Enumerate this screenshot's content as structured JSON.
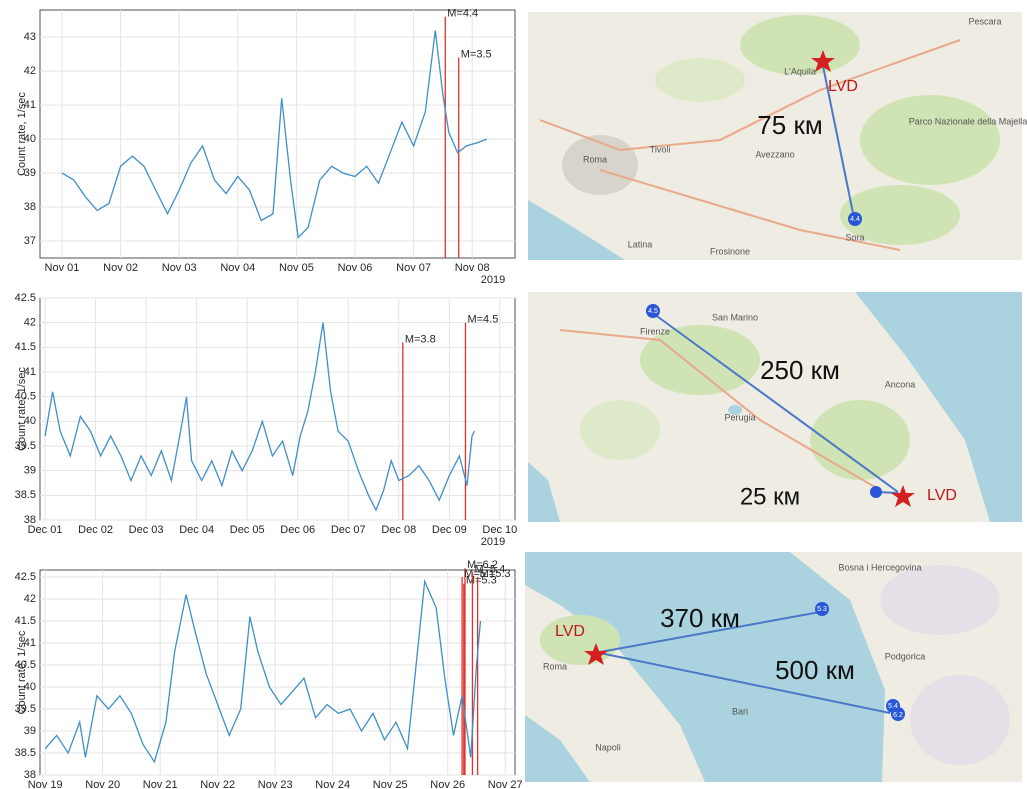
{
  "chart_data": [
    {
      "type": "line",
      "ylabel": "Count rate, 1/sec",
      "year": "2019",
      "color": "#3f8fc8",
      "grid": true,
      "xlim": [
        -0.375,
        7.73
      ],
      "ylim": [
        36.5,
        43.8
      ],
      "xticks": [
        {
          "value": 0,
          "label": "Nov 01"
        },
        {
          "value": 1,
          "label": "Nov 02"
        },
        {
          "value": 2,
          "label": "Nov 03"
        },
        {
          "value": 3,
          "label": "Nov 04"
        },
        {
          "value": 4,
          "label": "Nov 05"
        },
        {
          "value": 5,
          "label": "Nov 06"
        },
        {
          "value": 6,
          "label": "Nov 07"
        },
        {
          "value": 7,
          "label": "Nov 08"
        }
      ],
      "yticks": [
        37,
        38,
        39,
        40,
        41,
        42,
        43
      ],
      "x": [
        0,
        0.2,
        0.4,
        0.6,
        0.8,
        1.0,
        1.2,
        1.4,
        1.6,
        1.8,
        2.0,
        2.2,
        2.4,
        2.6,
        2.8,
        3.0,
        3.2,
        3.4,
        3.6,
        3.75,
        3.9,
        4.03,
        4.2,
        4.4,
        4.6,
        4.8,
        5.0,
        5.2,
        5.4,
        5.6,
        5.8,
        6.0,
        6.2,
        6.37,
        6.5,
        6.6,
        6.75,
        6.9,
        7.1,
        7.25
      ],
      "values": [
        39,
        38.8,
        38.3,
        37.9,
        38.1,
        39.2,
        39.5,
        39.2,
        38.5,
        37.8,
        38.5,
        39.3,
        39.8,
        38.8,
        38.4,
        38.9,
        38.5,
        37.6,
        37.8,
        41.2,
        38.8,
        37.1,
        37.4,
        38.8,
        39.2,
        39,
        38.9,
        39.2,
        38.7,
        39.6,
        40.5,
        39.8,
        40.8,
        43.2,
        41.3,
        40.2,
        39.6,
        39.8,
        39.9,
        40.0
      ],
      "annotations": [
        {
          "label": "M=4.4",
          "x": 6.54,
          "top": 43.6
        },
        {
          "label": "M=3.5",
          "x": 6.77,
          "top": 42.4
        }
      ]
    },
    {
      "type": "line",
      "ylabel": "Count rate, 1/sec",
      "year": "2019",
      "color": "#3f8fc8",
      "grid": true,
      "xlim": [
        -0.1,
        9.3
      ],
      "ylim": [
        38,
        42.5
      ],
      "xticks": [
        {
          "value": 0,
          "label": "Dec 01"
        },
        {
          "value": 1,
          "label": "Dec 02"
        },
        {
          "value": 2,
          "label": "Dec 03"
        },
        {
          "value": 3,
          "label": "Dec 04"
        },
        {
          "value": 4,
          "label": "Dec 05"
        },
        {
          "value": 5,
          "label": "Dec 06"
        },
        {
          "value": 6,
          "label": "Dec 07"
        },
        {
          "value": 7,
          "label": "Dec 08"
        },
        {
          "value": 8,
          "label": "Dec 09"
        },
        {
          "value": 9,
          "label": "Dec 10"
        }
      ],
      "yticks": [
        38,
        38.5,
        39,
        39.5,
        40,
        40.5,
        41,
        41.5,
        42,
        42.5
      ],
      "x": [
        0,
        0.15,
        0.3,
        0.5,
        0.7,
        0.9,
        1.1,
        1.3,
        1.5,
        1.7,
        1.9,
        2.1,
        2.3,
        2.5,
        2.7,
        2.8,
        2.9,
        3.1,
        3.3,
        3.5,
        3.7,
        3.9,
        4.1,
        4.3,
        4.5,
        4.7,
        4.9,
        5.05,
        5.2,
        5.35,
        5.5,
        5.65,
        5.8,
        6.0,
        6.2,
        6.4,
        6.55,
        6.7,
        6.85,
        7.0,
        7.2,
        7.4,
        7.6,
        7.8,
        8.0,
        8.2,
        8.35,
        8.45,
        8.5
      ],
      "values": [
        39.7,
        40.6,
        39.8,
        39.3,
        40.1,
        39.8,
        39.3,
        39.7,
        39.3,
        38.8,
        39.3,
        38.9,
        39.4,
        38.8,
        39.9,
        40.5,
        39.2,
        38.8,
        39.2,
        38.7,
        39.4,
        39,
        39.4,
        40,
        39.3,
        39.6,
        38.9,
        39.7,
        40.2,
        41,
        42,
        40.6,
        39.8,
        39.6,
        39.0,
        38.5,
        38.2,
        38.6,
        39.2,
        38.8,
        38.9,
        39.1,
        38.8,
        38.4,
        38.9,
        39.3,
        38.7,
        39.7,
        39.8
      ],
      "annotations": [
        {
          "label": "M=3.8",
          "x": 7.08,
          "top": 41.6
        },
        {
          "label": "M=4.5",
          "x": 8.32,
          "top": 42
        }
      ]
    },
    {
      "type": "line",
      "ylabel": "Count rate, 1/sec",
      "color": "#3f8fc8",
      "grid": true,
      "xlim": [
        -0.09,
        8.17
      ],
      "ylim": [
        38,
        42.66
      ],
      "xticks": [
        {
          "value": 0,
          "label": "Nov 19"
        },
        {
          "value": 1,
          "label": "Nov 20"
        },
        {
          "value": 2,
          "label": "Nov 21"
        },
        {
          "value": 3,
          "label": "Nov 22"
        },
        {
          "value": 4,
          "label": "Nov 23"
        },
        {
          "value": 5,
          "label": "Nov 24"
        },
        {
          "value": 6,
          "label": "Nov 25"
        },
        {
          "value": 7,
          "label": "Nov 26"
        },
        {
          "value": 8,
          "label": "Nov 27"
        }
      ],
      "yticks": [
        38,
        38.5,
        39,
        39.5,
        40,
        40.5,
        41,
        41.5,
        42,
        42.5
      ],
      "x": [
        0,
        0.2,
        0.4,
        0.6,
        0.7,
        0.9,
        1.1,
        1.3,
        1.5,
        1.7,
        1.9,
        2.1,
        2.25,
        2.45,
        2.6,
        2.8,
        3.0,
        3.2,
        3.4,
        3.56,
        3.7,
        3.9,
        4.1,
        4.3,
        4.5,
        4.7,
        4.9,
        5.1,
        5.3,
        5.5,
        5.7,
        5.9,
        6.1,
        6.3,
        6.45,
        6.6,
        6.8,
        6.95,
        7.1,
        7.25,
        7.4,
        7.5,
        7.57
      ],
      "values": [
        38.6,
        38.9,
        38.5,
        39.2,
        38.4,
        39.8,
        39.5,
        39.8,
        39.4,
        38.7,
        38.3,
        39.2,
        40.8,
        42.1,
        41.3,
        40.3,
        39.6,
        38.9,
        39.5,
        41.6,
        40.8,
        40,
        39.6,
        39.9,
        40.2,
        39.3,
        39.6,
        39.4,
        39.5,
        39,
        39.4,
        38.8,
        39.2,
        38.6,
        40.5,
        42.4,
        41.8,
        40.2,
        38.9,
        39.8,
        38.4,
        40.5,
        41.5
      ],
      "annotations": [
        {
          "label": "M=6.2",
          "x": 7.3,
          "top": 42.7
        },
        {
          "label": "M=5.1",
          "x": 7.25,
          "top": 42.5
        },
        {
          "label": "M=5.3",
          "x": 7.28,
          "top": 42.35
        },
        {
          "label": "M=5.4",
          "x": 7.43,
          "top": 42.6
        },
        {
          "label": "M=5.3",
          "x": 7.52,
          "top": 42.5
        }
      ]
    }
  ],
  "maps": [
    {
      "labels": [
        "75 км",
        "LVD",
        "L'Aquila",
        "Roma",
        "Avezzano",
        "Sora",
        "Pescara",
        "Parco Nazionale della Majella",
        "Tivoli",
        "Frosinone",
        "Latina",
        "4.4"
      ]
    },
    {
      "labels": [
        "250 км",
        "25 км",
        "LVD",
        "San Marino",
        "Firenze",
        "Perugia",
        "Ancona",
        "4.5"
      ]
    },
    {
      "labels": [
        "370 км",
        "500 км",
        "LVD",
        "Roma",
        "Napoli",
        "Bari",
        "Podgorica",
        "Bosna i Hercegovina",
        "5.3",
        "5.4",
        "6.2"
      ]
    }
  ]
}
